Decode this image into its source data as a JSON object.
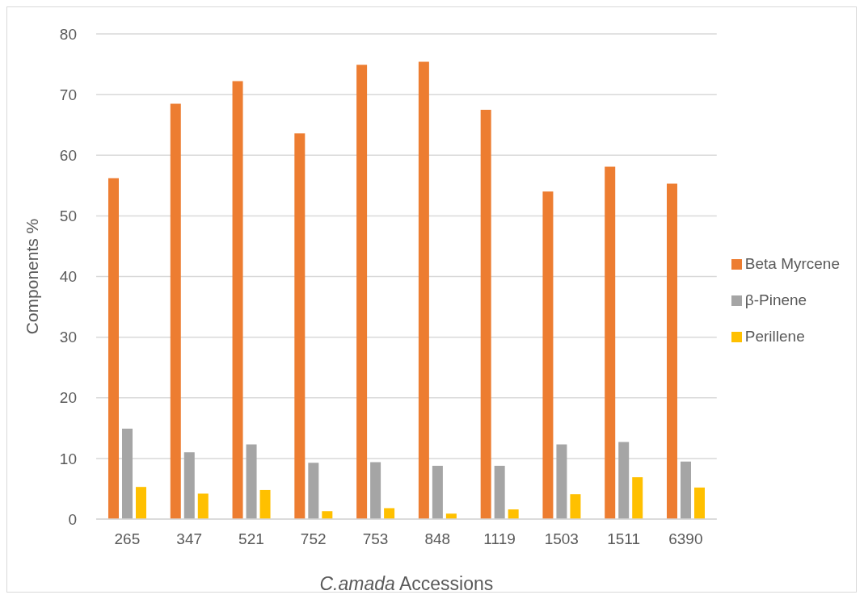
{
  "chart_data": {
    "type": "bar",
    "xlabel": "C.amada Accessions",
    "ylabel": "Components %",
    "categories": [
      "265",
      "347",
      "521",
      "752",
      "753",
      "848",
      "1119",
      "1503",
      "1511",
      "6390"
    ],
    "series": [
      {
        "name": "Beta Myrcene",
        "color": "#ed7d31",
        "values": [
          56.2,
          68.5,
          72.2,
          63.6,
          74.9,
          75.4,
          67.5,
          54.0,
          58.1,
          55.3
        ]
      },
      {
        "name": "β-Pinene",
        "color": "#a5a5a5",
        "values": [
          14.9,
          11.0,
          12.3,
          9.3,
          9.4,
          8.8,
          8.8,
          12.3,
          12.7,
          9.5
        ]
      },
      {
        "name": "Perillene",
        "color": "#ffc000",
        "values": [
          5.3,
          4.2,
          4.8,
          1.3,
          1.8,
          0.9,
          1.6,
          4.1,
          6.9,
          5.2
        ]
      }
    ],
    "ylim": [
      0,
      80
    ],
    "yticks": [
      0,
      10,
      20,
      30,
      40,
      50,
      60,
      70,
      80
    ],
    "grid": "y",
    "legend": "right"
  }
}
